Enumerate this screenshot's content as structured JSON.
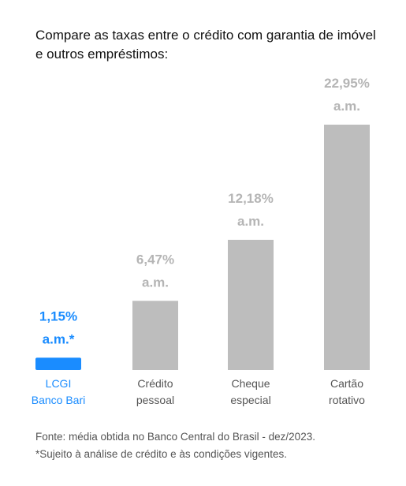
{
  "title": "Compare as taxas entre o crédito com garantia de imóvel e outros empréstimos:",
  "colors": {
    "highlight": "#1a8cff",
    "bar": "#bdbdbd",
    "muted_label": "#b5b5b5",
    "category_label": "#555555"
  },
  "chart_data": {
    "type": "bar",
    "categories": [
      [
        "LCGI",
        "Banco Bari"
      ],
      [
        "Crédito",
        "pessoal"
      ],
      [
        "Cheque",
        "especial"
      ],
      [
        "Cartão",
        "rotativo"
      ]
    ],
    "values": [
      1.15,
      6.47,
      12.18,
      22.95
    ],
    "value_labels": [
      [
        "1,15%",
        "a.m.*"
      ],
      [
        "6,47%",
        "a.m."
      ],
      [
        "12,18%",
        "a.m."
      ],
      [
        "22,95%",
        "a.m."
      ]
    ],
    "highlight_index": 0,
    "xlabel": "",
    "ylabel": "",
    "ylim": [
      0,
      22.95
    ],
    "grid": false,
    "legend": "none"
  },
  "footer": {
    "source": "Fonte: média obtida no Banco Central do Brasil - dez/2023.",
    "note": "*Sujeito à análise de crédito e às condições vigentes."
  }
}
